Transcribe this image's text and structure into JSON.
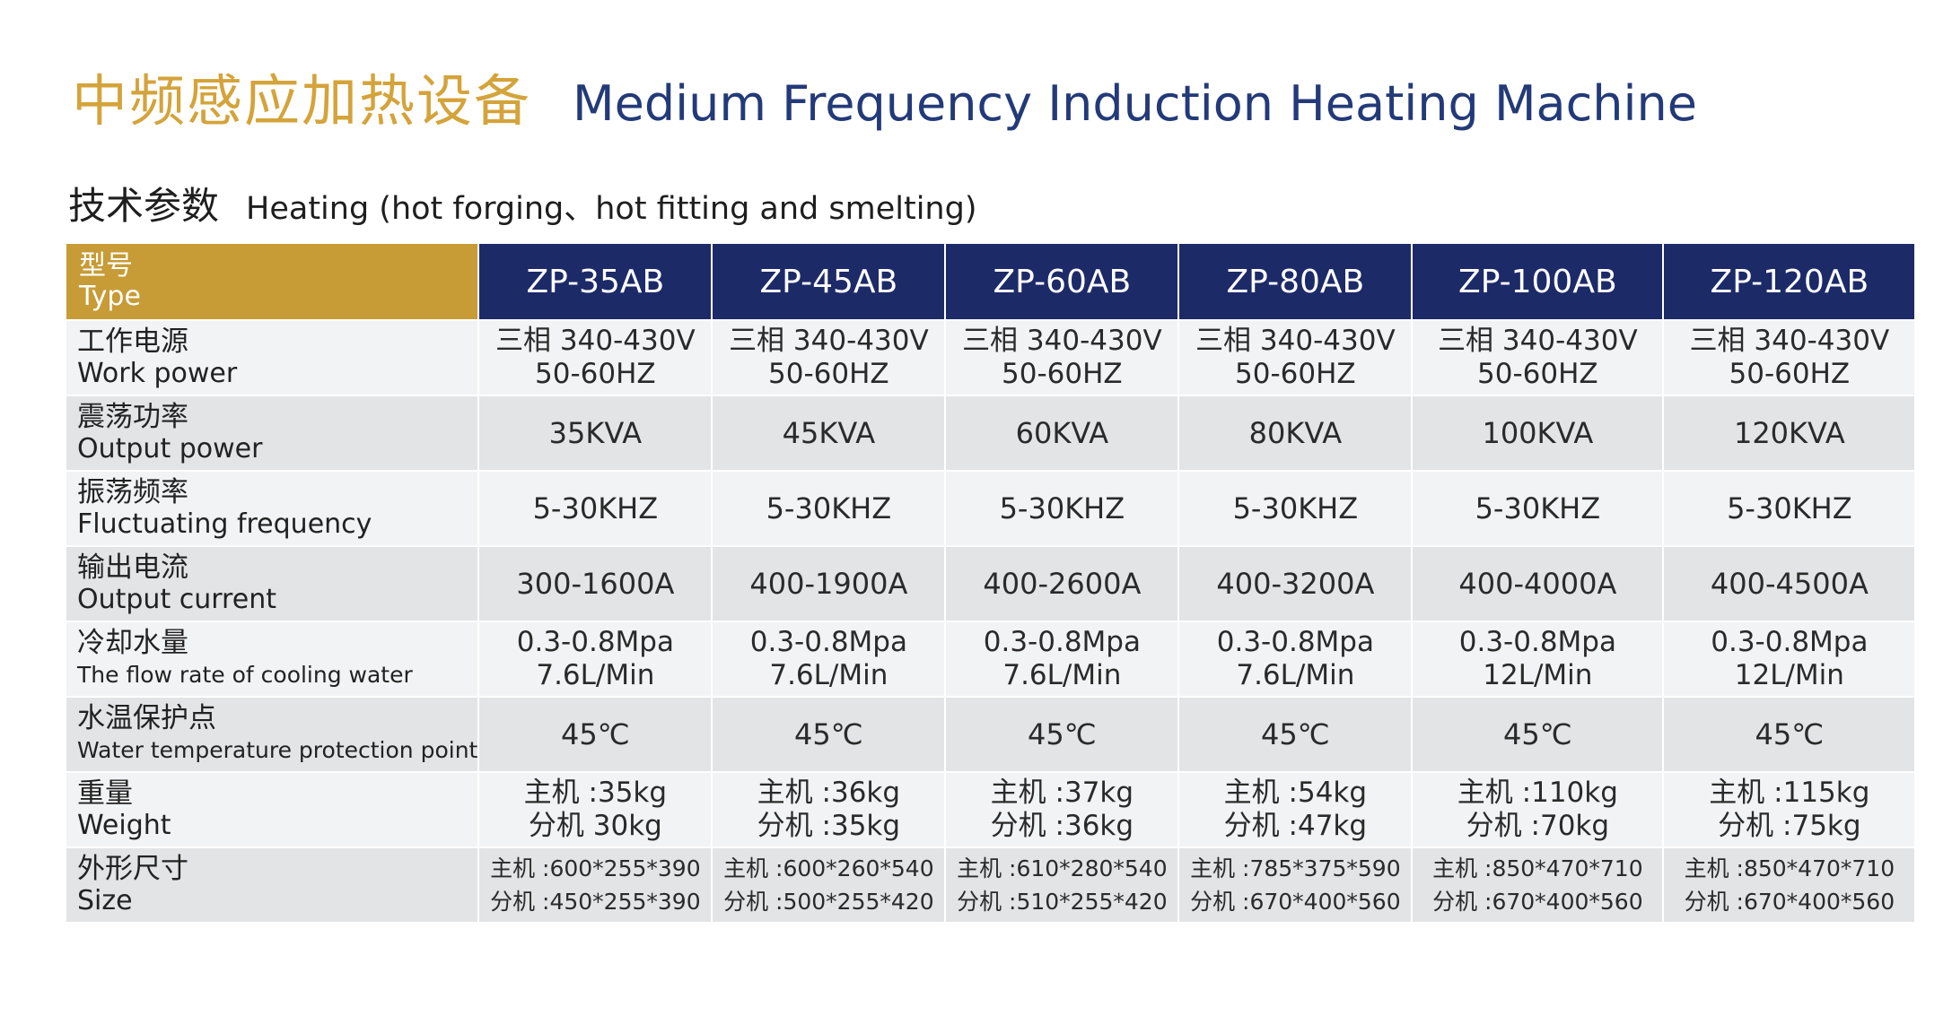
{
  "title": {
    "cn": "中频感应加热设备",
    "en": "Medium Frequency Induction Heating Machine"
  },
  "subtitle": {
    "cn": "技术参数",
    "en": "Heating (hot forging、hot fitting and smelting)"
  },
  "colors": {
    "gold": "#c79b36",
    "navy": "#1d2a68",
    "title_gold": "#d4a33a",
    "title_navy": "#233a79"
  },
  "table": {
    "header": {
      "cn": "型号",
      "en": "Type"
    },
    "models": [
      "ZP-35AB",
      "ZP-45AB",
      "ZP-60AB",
      "ZP-80AB",
      "ZP-100AB",
      "ZP-120AB"
    ],
    "rows": [
      {
        "cn": "工作电源",
        "en": "Work power",
        "values": [
          [
            "三相 340-430V",
            "50-60HZ"
          ],
          [
            "三相 340-430V",
            "50-60HZ"
          ],
          [
            "三相 340-430V",
            "50-60HZ"
          ],
          [
            "三相 340-430V",
            "50-60HZ"
          ],
          [
            "三相 340-430V",
            "50-60HZ"
          ],
          [
            "三相 340-430V",
            "50-60HZ"
          ]
        ]
      },
      {
        "cn": "震荡功率",
        "en": "Output power",
        "values": [
          [
            "35KVA"
          ],
          [
            "45KVA"
          ],
          [
            "60KVA"
          ],
          [
            "80KVA"
          ],
          [
            "100KVA"
          ],
          [
            "120KVA"
          ]
        ]
      },
      {
        "cn": "振荡频率",
        "en": "Fluctuating frequency",
        "values": [
          [
            "5-30KHZ"
          ],
          [
            "5-30KHZ"
          ],
          [
            "5-30KHZ"
          ],
          [
            "5-30KHZ"
          ],
          [
            "5-30KHZ"
          ],
          [
            "5-30KHZ"
          ]
        ]
      },
      {
        "cn": "输出电流",
        "en": "Output current",
        "values": [
          [
            "300-1600A"
          ],
          [
            "400-1900A"
          ],
          [
            "400-2600A"
          ],
          [
            "400-3200A"
          ],
          [
            "400-4000A"
          ],
          [
            "400-4500A"
          ]
        ]
      },
      {
        "cn": "冷却水量",
        "en": "The flow rate of cooling water",
        "values": [
          [
            "0.3-0.8Mpa",
            "7.6L/Min"
          ],
          [
            "0.3-0.8Mpa",
            "7.6L/Min"
          ],
          [
            "0.3-0.8Mpa",
            "7.6L/Min"
          ],
          [
            "0.3-0.8Mpa",
            "7.6L/Min"
          ],
          [
            "0.3-0.8Mpa",
            "12L/Min"
          ],
          [
            "0.3-0.8Mpa",
            "12L/Min"
          ]
        ]
      },
      {
        "cn": "水温保护点",
        "en": "Water temperature protection point",
        "values": [
          [
            "45℃"
          ],
          [
            "45℃"
          ],
          [
            "45℃"
          ],
          [
            "45℃"
          ],
          [
            "45℃"
          ],
          [
            "45℃"
          ]
        ]
      },
      {
        "cn": "重量",
        "en": "Weight",
        "values": [
          [
            "主机 :35kg",
            "分机 30kg"
          ],
          [
            "主机 :36kg",
            "分机 :35kg"
          ],
          [
            "主机 :37kg",
            "分机 :36kg"
          ],
          [
            "主机 :54kg",
            "分机 :47kg"
          ],
          [
            "主机 :110kg",
            "分机 :70kg"
          ],
          [
            "主机 :115kg",
            "分机 :75kg"
          ]
        ]
      },
      {
        "cn": "外形尺寸",
        "en": "Size",
        "values": [
          [
            "主机 :600*255*390",
            "分机 :450*255*390"
          ],
          [
            "主机 :600*260*540",
            "分机 :500*255*420"
          ],
          [
            "主机 :610*280*540",
            "分机 :510*255*420"
          ],
          [
            "主机 :785*375*590",
            "分机 :670*400*560"
          ],
          [
            "主机 :850*470*710",
            "分机 :670*400*560"
          ],
          [
            "主机 :850*470*710",
            "分机 :670*400*560"
          ]
        ]
      }
    ]
  }
}
